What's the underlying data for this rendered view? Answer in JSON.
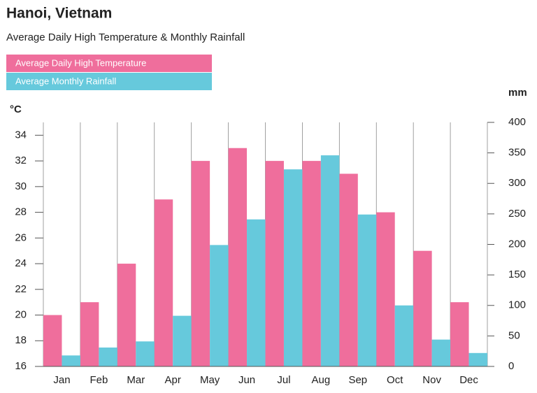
{
  "chart_data": {
    "type": "bar",
    "title": "Hanoi, Vietnam",
    "subtitle": "Average Daily High Temperature & Monthly Rainfall",
    "y_label": "°C",
    "y2_label": "mm",
    "categories": [
      "Jan",
      "Feb",
      "Mar",
      "Apr",
      "May",
      "Jun",
      "Jul",
      "Aug",
      "Sep",
      "Oct",
      "Nov",
      "Dec"
    ],
    "series": [
      {
        "name": "Average Daily High Temperature",
        "color": "#ef6e9c",
        "values": [
          20,
          21,
          24,
          29,
          32,
          33,
          32,
          32,
          31,
          28,
          25,
          21
        ]
      },
      {
        "name": "Average Monthly Rainfall",
        "color": "#66c9dc",
        "axis": "y2",
        "values": [
          18,
          31,
          41,
          83,
          199,
          241,
          323,
          346,
          249,
          100,
          44,
          22
        ]
      }
    ],
    "ylim": [
      16,
      35
    ],
    "yticks": [
      16,
      18,
      20,
      22,
      24,
      26,
      28,
      30,
      32,
      34
    ],
    "y2lim": [
      0,
      400
    ],
    "y2ticks": [
      0,
      50,
      100,
      150,
      200,
      250,
      300,
      350,
      400
    ],
    "grid": true,
    "legend": "top-left"
  }
}
